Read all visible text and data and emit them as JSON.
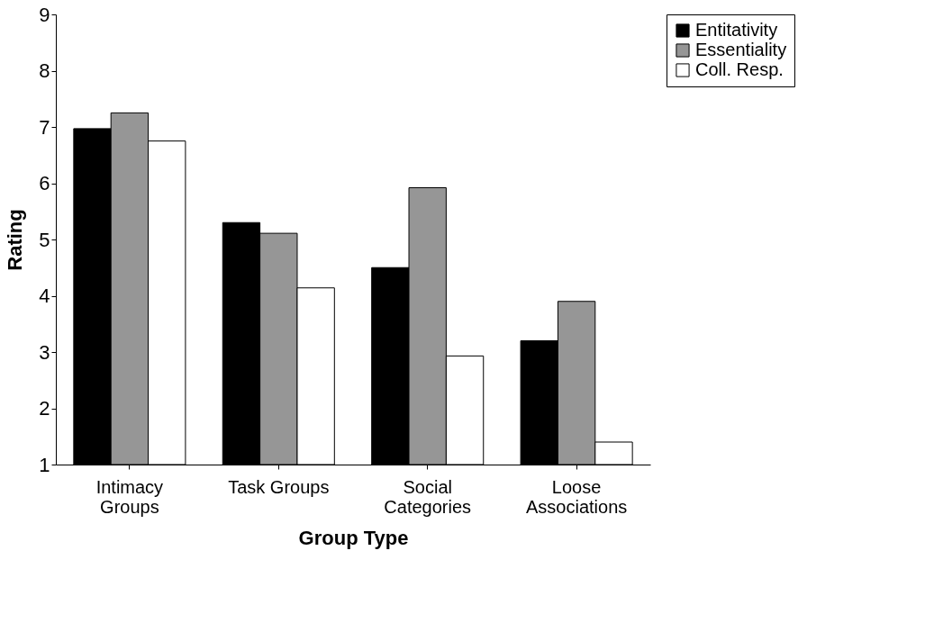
{
  "chart_data": {
    "type": "bar",
    "xlabel": "Group Type",
    "ylabel": "Rating",
    "categories": [
      "Intimacy\nGroups",
      "Task Groups",
      "Social\nCategories",
      "Loose\nAssociations"
    ],
    "series": [
      {
        "name": "Entitativity",
        "color": "#000000",
        "values": [
          6.97,
          5.3,
          4.5,
          3.2
        ]
      },
      {
        "name": "Essentiality",
        "color": "#969696",
        "values": [
          7.25,
          5.11,
          5.92,
          3.9
        ]
      },
      {
        "name": "Coll. Resp.",
        "color": "#ffffff",
        "values": [
          6.75,
          4.14,
          2.93,
          1.4
        ]
      }
    ],
    "ylim": [
      1,
      9
    ],
    "yticks": [
      1,
      2,
      3,
      4,
      5,
      6,
      7,
      8,
      9
    ],
    "grid": false,
    "legend": "right"
  }
}
